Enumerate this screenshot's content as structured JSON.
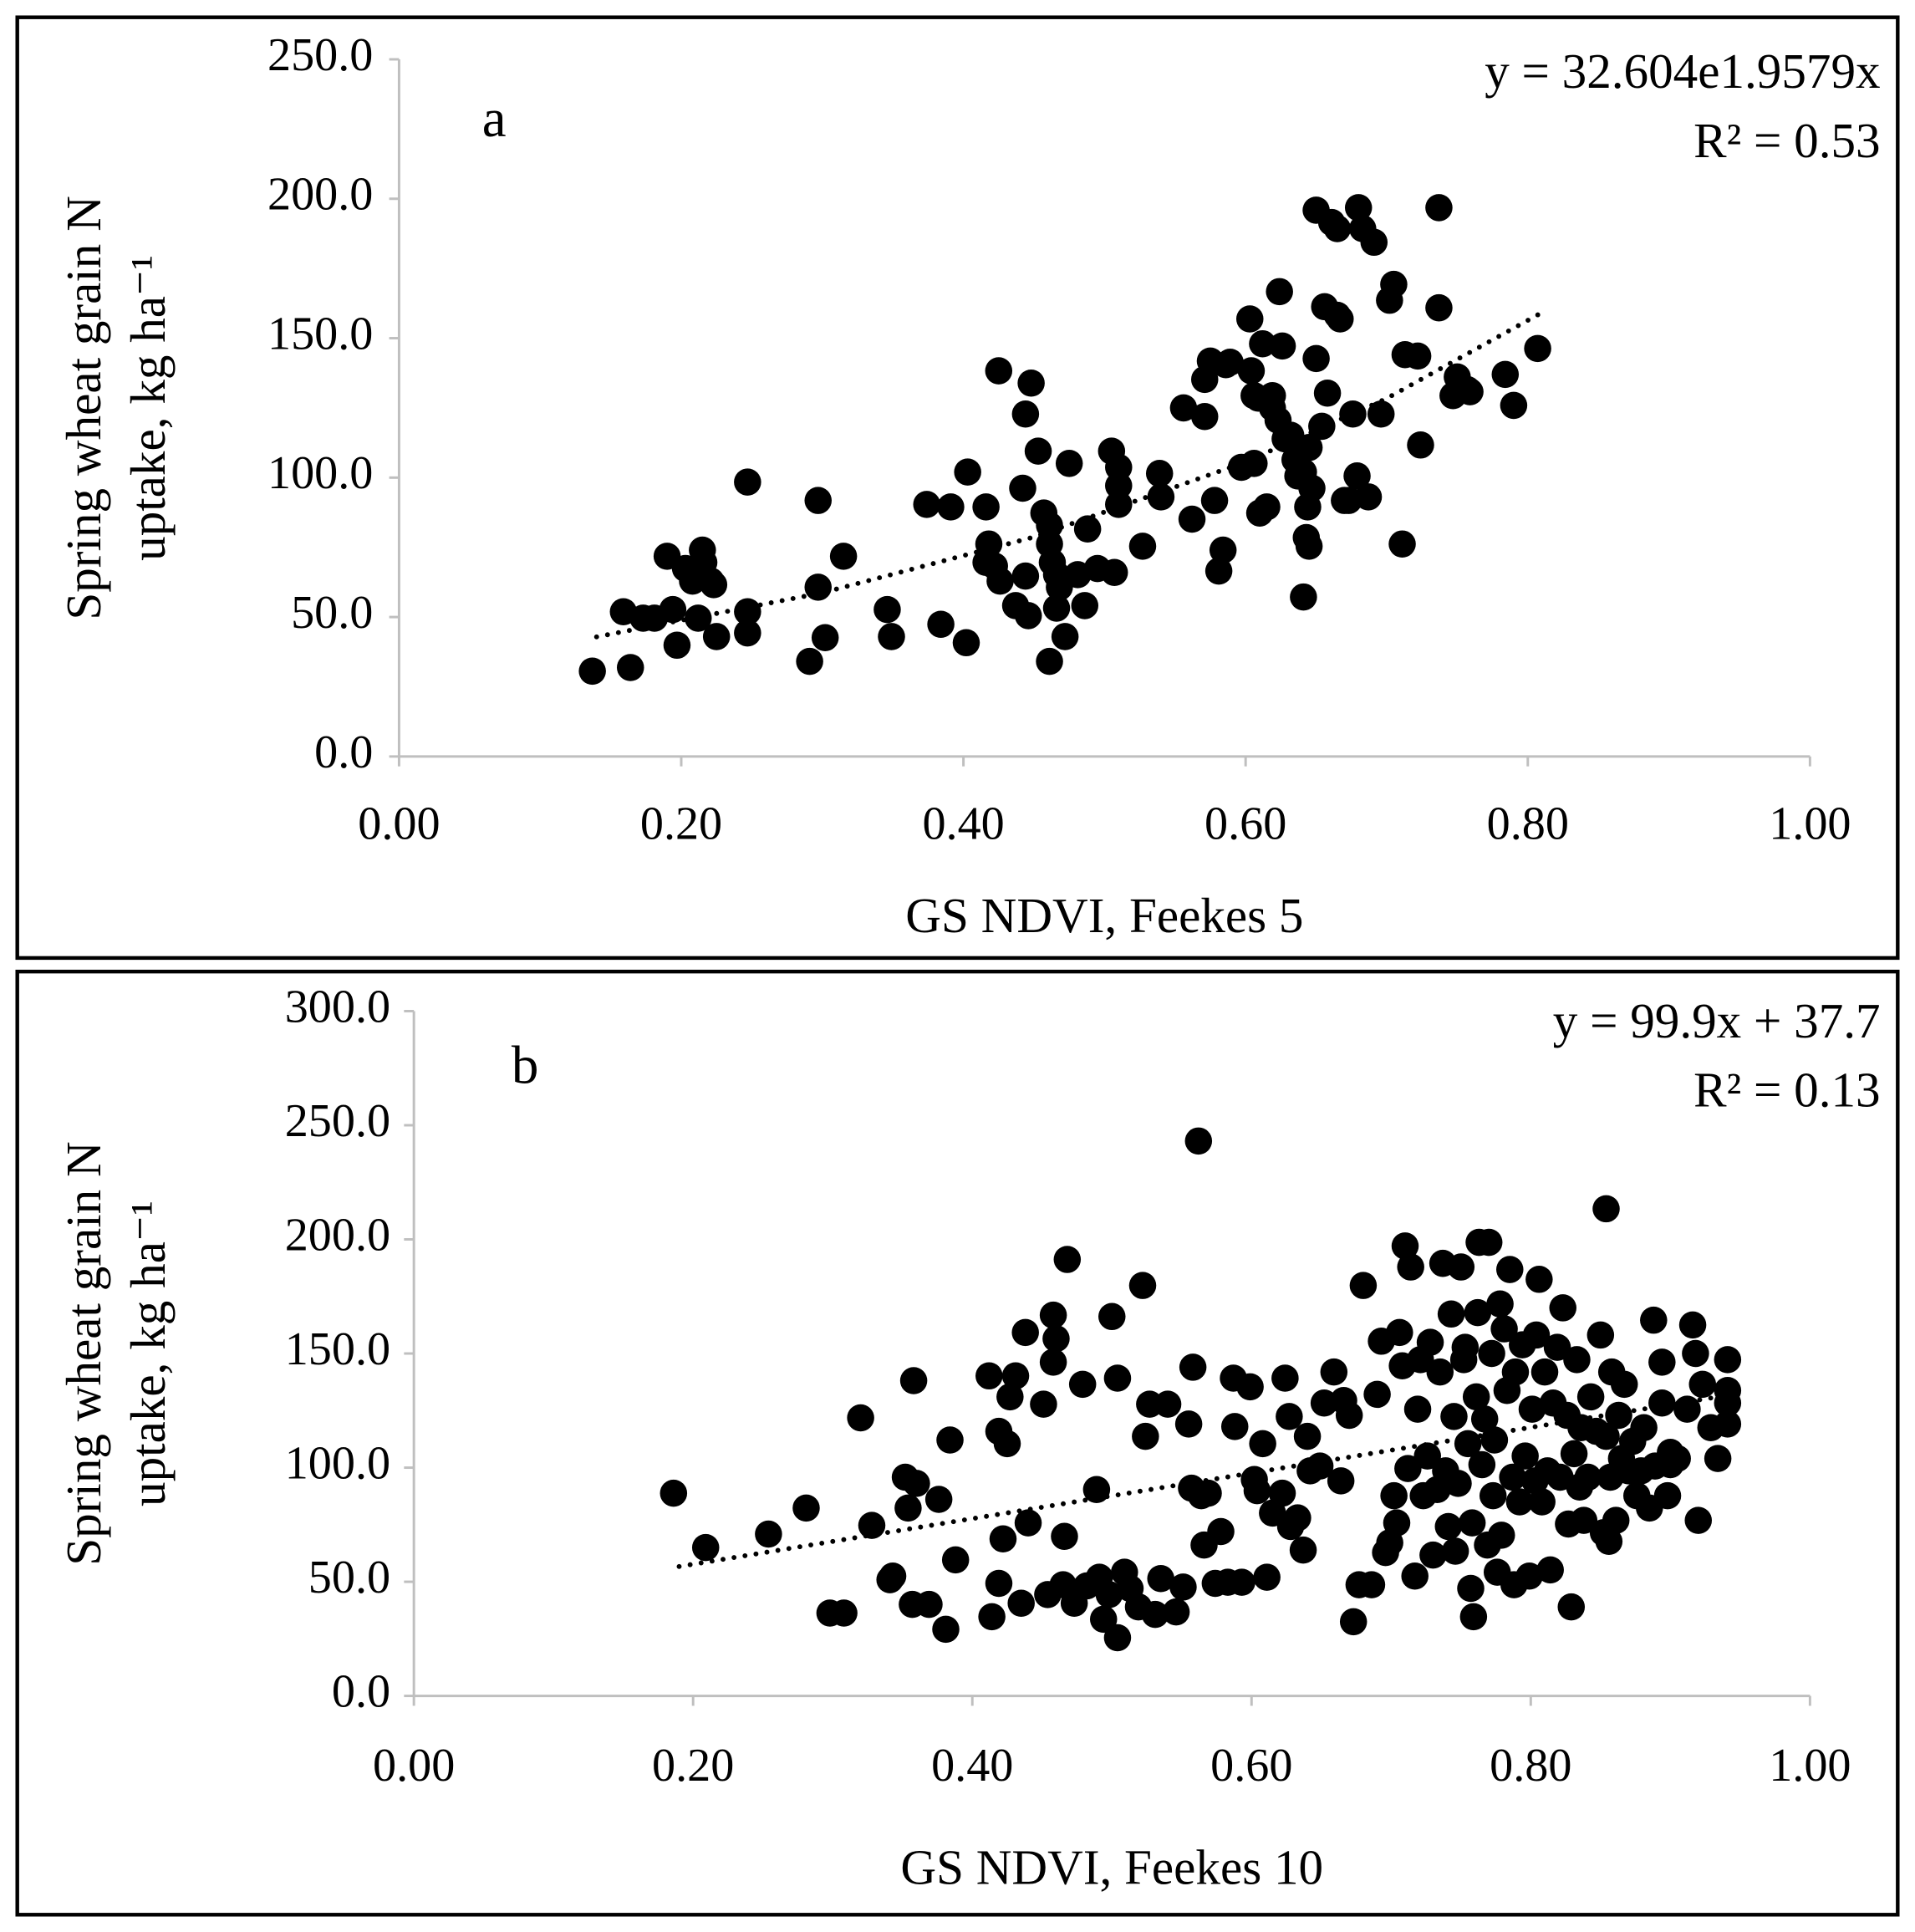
{
  "chart_data": [
    {
      "type": "scatter",
      "panel_label": "a",
      "annotations": [
        "y = 32.604e1.9579x",
        "R² = 0.53"
      ],
      "xlabel": "GS NDVI, Feekes 5",
      "ylabel": [
        "Spring wheat grain N",
        "uptake, kg ha⁻¹"
      ],
      "color": "#000000",
      "xlim": [
        0,
        1
      ],
      "ylim": [
        0,
        250
      ],
      "xticks": [
        {
          "value": 0,
          "label": "0.00"
        },
        {
          "value": 0.2,
          "label": "0.20"
        },
        {
          "value": 0.4,
          "label": "0.40"
        },
        {
          "value": 0.6,
          "label": "0.60"
        },
        {
          "value": 0.8,
          "label": "0.80"
        },
        {
          "value": 1,
          "label": "1.00"
        }
      ],
      "yticks": [
        {
          "value": 0,
          "label": "0.0"
        },
        {
          "value": 50,
          "label": "50.0"
        },
        {
          "value": 100,
          "label": "100.0"
        },
        {
          "value": 150,
          "label": "150.0"
        },
        {
          "value": 200,
          "label": "200.0"
        },
        {
          "value": 250,
          "label": "250.0"
        }
      ],
      "grid": false,
      "x": [
        0.137,
        0.164,
        0.159,
        0.173,
        0.181,
        0.19,
        0.194,
        0.197,
        0.203,
        0.208,
        0.212,
        0.215,
        0.216,
        0.221,
        0.223,
        0.225,
        0.247,
        0.247,
        0.247,
        0.297,
        0.297,
        0.302,
        0.291,
        0.315,
        0.346,
        0.349,
        0.374,
        0.391,
        0.384,
        0.402,
        0.403,
        0.416,
        0.416,
        0.418,
        0.425,
        0.422,
        0.426,
        0.437,
        0.444,
        0.442,
        0.446,
        0.448,
        0.444,
        0.453,
        0.457,
        0.461,
        0.461,
        0.463,
        0.466,
        0.468,
        0.466,
        0.461,
        0.472,
        0.475,
        0.481,
        0.486,
        0.488,
        0.495,
        0.505,
        0.51,
        0.51,
        0.51,
        0.507,
        0.527,
        0.539,
        0.54,
        0.556,
        0.562,
        0.571,
        0.571,
        0.575,
        0.578,
        0.581,
        0.584,
        0.586,
        0.589,
        0.597,
        0.603,
        0.604,
        0.606,
        0.606,
        0.609,
        0.61,
        0.612,
        0.615,
        0.619,
        0.619,
        0.623,
        0.624,
        0.626,
        0.628,
        0.632,
        0.635,
        0.637,
        0.641,
        0.644,
        0.645,
        0.643,
        0.641,
        0.645,
        0.647,
        0.65,
        0.65,
        0.654,
        0.656,
        0.658,
        0.661,
        0.665,
        0.665,
        0.667,
        0.67,
        0.673,
        0.676,
        0.679,
        0.68,
        0.683,
        0.687,
        0.691,
        0.696,
        0.702,
        0.705,
        0.711,
        0.713,
        0.722,
        0.724,
        0.737,
        0.737,
        0.747,
        0.75,
        0.757,
        0.759,
        0.784,
        0.79,
        0.807
      ],
      "y": [
        30.6,
        31.9,
        51.9,
        49.6,
        49.6,
        71.8,
        52.7,
        39.9,
        67.4,
        62.9,
        49.6,
        74.0,
        69.6,
        62.9,
        61.6,
        43.0,
        98.4,
        51.9,
        44.3,
        91.8,
        60.7,
        42.6,
        34.1,
        71.8,
        52.7,
        43.0,
        90.4,
        89.5,
        47.4,
        40.8,
        102.0,
        89.5,
        69.6,
        76.2,
        138.3,
        68.3,
        62.9,
        54.1,
        64.7,
        96.2,
        50.5,
        133.9,
        122.8,
        109.5,
        87.3,
        82.9,
        76.2,
        69.6,
        65.2,
        60.7,
        53.2,
        34.1,
        43.0,
        105.1,
        65.2,
        54.1,
        81.6,
        67.4,
        109.5,
        103.7,
        97.1,
        90.4,
        66.0,
        75.4,
        101.5,
        93.1,
        125.0,
        85.1,
        135.2,
        121.9,
        141.8,
        91.8,
        66.5,
        74.0,
        140.5,
        141.4,
        103.7,
        156.9,
        138.3,
        129.4,
        105.1,
        128.5,
        87.3,
        148.0,
        89.5,
        125.0,
        129.4,
        120.6,
        166.7,
        147.2,
        113.9,
        115.2,
        106.4,
        100.6,
        102.0,
        89.5,
        75.4,
        78.5,
        57.2,
        110.8,
        96.2,
        142.7,
        195.9,
        118.4,
        161.3,
        130.3,
        191.5,
        189.3,
        158.2,
        156.9,
        91.8,
        91.8,
        122.8,
        100.6,
        196.8,
        189.3,
        93.1,
        184.4,
        122.8,
        163.6,
        169.3,
        76.2,
        144.1,
        143.6,
        111.7,
        196.8,
        160.9,
        129.4,
        136.1,
        131.6,
        130.8,
        137.0,
        125.9,
        146.3
      ],
      "trendline": {
        "style": "dotted",
        "x": [
          0.14,
          0.3,
          0.45,
          0.6,
          0.7,
          0.81
        ],
        "y": [
          42.9,
          58.7,
          78.7,
          105.6,
          128.4,
          159.2
        ]
      }
    },
    {
      "type": "scatter",
      "panel_label": "b",
      "annotations": [
        "y = 99.9x + 37.7",
        "R² = 0.13"
      ],
      "xlabel": "GS NDVI, Feekes 10",
      "ylabel": [
        "Spring wheat grain N",
        "uptake, kg ha⁻¹"
      ],
      "color": "#000000",
      "xlim": [
        0,
        1
      ],
      "ylim": [
        0,
        300
      ],
      "xticks": [
        {
          "value": 0,
          "label": "0.00"
        },
        {
          "value": 0.2,
          "label": "0.20"
        },
        {
          "value": 0.4,
          "label": "0.40"
        },
        {
          "value": 0.6,
          "label": "0.60"
        },
        {
          "value": 0.8,
          "label": "0.80"
        },
        {
          "value": 1,
          "label": "1.00"
        }
      ],
      "yticks": [
        {
          "value": 0,
          "label": "0.0"
        },
        {
          "value": 50,
          "label": "50.0"
        },
        {
          "value": 100,
          "label": "100.0"
        },
        {
          "value": 150,
          "label": "150.0"
        },
        {
          "value": 200,
          "label": "200.0"
        },
        {
          "value": 250,
          "label": "250.0"
        },
        {
          "value": 300,
          "label": "300.0"
        }
      ],
      "grid": false,
      "x": [
        0.186,
        0.209,
        0.254,
        0.281,
        0.298,
        0.308,
        0.32,
        0.328,
        0.341,
        0.343,
        0.352,
        0.354,
        0.357,
        0.358,
        0.36,
        0.369,
        0.376,
        0.381,
        0.384,
        0.388,
        0.412,
        0.414,
        0.419,
        0.419,
        0.422,
        0.425,
        0.427,
        0.431,
        0.435,
        0.438,
        0.44,
        0.451,
        0.454,
        0.458,
        0.458,
        0.46,
        0.465,
        0.466,
        0.468,
        0.473,
        0.479,
        0.482,
        0.489,
        0.491,
        0.494,
        0.498,
        0.5,
        0.504,
        0.504,
        0.509,
        0.513,
        0.519,
        0.522,
        0.524,
        0.527,
        0.531,
        0.535,
        0.54,
        0.546,
        0.551,
        0.555,
        0.557,
        0.558,
        0.562,
        0.564,
        0.566,
        0.569,
        0.574,
        0.578,
        0.583,
        0.587,
        0.588,
        0.593,
        0.599,
        0.602,
        0.604,
        0.608,
        0.611,
        0.615,
        0.622,
        0.624,
        0.627,
        0.628,
        0.633,
        0.637,
        0.64,
        0.642,
        0.649,
        0.652,
        0.659,
        0.664,
        0.666,
        0.67,
        0.673,
        0.677,
        0.68,
        0.686,
        0.69,
        0.693,
        0.696,
        0.699,
        0.702,
        0.704,
        0.706,
        0.708,
        0.71,
        0.712,
        0.714,
        0.717,
        0.719,
        0.721,
        0.723,
        0.726,
        0.728,
        0.73,
        0.733,
        0.735,
        0.737,
        0.739,
        0.741,
        0.743,
        0.745,
        0.746,
        0.748,
        0.75,
        0.752,
        0.753,
        0.755,
        0.757,
        0.758,
        0.759,
        0.761,
        0.762,
        0.763,
        0.765,
        0.767,
        0.769,
        0.77,
        0.772,
        0.773,
        0.774,
        0.776,
        0.778,
        0.779,
        0.781,
        0.783,
        0.785,
        0.787,
        0.788,
        0.789,
        0.792,
        0.794,
        0.796,
        0.799,
        0.801,
        0.803,
        0.804,
        0.806,
        0.808,
        0.81,
        0.812,
        0.814,
        0.816,
        0.819,
        0.821,
        0.823,
        0.826,
        0.827,
        0.829,
        0.831,
        0.833,
        0.835,
        0.836,
        0.838,
        0.841,
        0.843,
        0.847,
        0.85,
        0.852,
        0.854,
        0.857,
        0.858,
        0.861,
        0.863,
        0.865,
        0.867,
        0.87,
        0.873,
        0.876,
        0.879,
        0.881,
        0.885,
        0.889,
        0.894,
        0.898,
        0.9,
        0.905,
        0.912,
        0.918,
        0.923,
        0.929,
        0.934,
        0.941,
        0.941,
        0.941,
        0.941,
        0.92,
        0.9,
        0.894,
        0.888,
        0.916,
        0.856,
        0.854
      ],
      "y": [
        88.8,
        65.0,
        70.9,
        82.3,
        36.3,
        36.3,
        121.8,
        74.7,
        50.9,
        52.5,
        95.8,
        82.3,
        40.1,
        138.1,
        93.1,
        40.1,
        86.1,
        29.2,
        112.1,
        59.6,
        140.2,
        34.7,
        49.3,
        115.9,
        68.8,
        110.5,
        131.0,
        140.2,
        40.6,
        159.2,
        75.8,
        127.8,
        44.4,
        146.2,
        166.8,
        156.5,
        48.7,
        69.9,
        191.2,
        40.6,
        136.5,
        48.2,
        90.4,
        52.0,
        33.6,
        44.4,
        166.2,
        139.2,
        25.5,
        54.2,
        47.1,
        39.0,
        179.8,
        113.7,
        127.8,
        35.7,
        51.4,
        127.8,
        36.8,
        47.7,
        119.1,
        91.0,
        144.0,
        243.1,
        87.7,
        66.1,
        88.8,
        49.3,
        72.0,
        49.8,
        139.2,
        118.0,
        49.8,
        135.4,
        94.8,
        89.9,
        110.5,
        52.0,
        80.1,
        88.8,
        139.2,
        122.4,
        74.2,
        78.0,
        63.9,
        113.7,
        98.6,
        100.7,
        128.3,
        141.9,
        94.2,
        129.4,
        122.9,
        32.5,
        48.7,
        179.8,
        48.7,
        132.1,
        155.4,
        62.8,
        67.1,
        87.7,
        75.8,
        159.2,
        144.6,
        197.1,
        99.6,
        187.9,
        52.5,
        125.6,
        147.3,
        87.7,
        105.1,
        154.9,
        61.7,
        90.4,
        141.9,
        189.5,
        98.6,
        74.2,
        167.3,
        122.4,
        63.4,
        93.1,
        187.9,
        147.3,
        152.7,
        110.5,
        47.1,
        75.8,
        34.7,
        131.0,
        167.9,
        198.7,
        101.3,
        121.3,
        66.1,
        198.7,
        150.0,
        87.7,
        112.1,
        54.2,
        171.7,
        70.4,
        160.8,
        133.8,
        186.8,
        95.8,
        48.7,
        141.9,
        85.0,
        153.8,
        105.1,
        52.5,
        125.6,
        94.2,
        158.1,
        182.5,
        85.0,
        141.9,
        98.6,
        55.2,
        128.3,
        152.7,
        95.8,
        170.0,
        122.9,
        75.3,
        39.0,
        106.1,
        147.3,
        91.5,
        117.5,
        76.9,
        95.8,
        131.0,
        115.9,
        158.1,
        71.5,
        113.7,
        95.8,
        141.9,
        76.9,
        122.9,
        104.0,
        136.5,
        98.6,
        111.5,
        87.7,
        98.6,
        117.5,
        82.3,
        100.7,
        128.3,
        87.7,
        106.7,
        104.0,
        125.6,
        150.0,
        136.5,
        117.5,
        104.0,
        147.3,
        133.8,
        128.3,
        119.1,
        76.9,
        101.3,
        146.2,
        164.6,
        162.5,
        67.7,
        213.4
      ],
      "trendline": {
        "style": "dotted",
        "x": [
          0.19,
          0.94
        ],
        "y": [
          56.7,
          131.6
        ]
      }
    }
  ]
}
